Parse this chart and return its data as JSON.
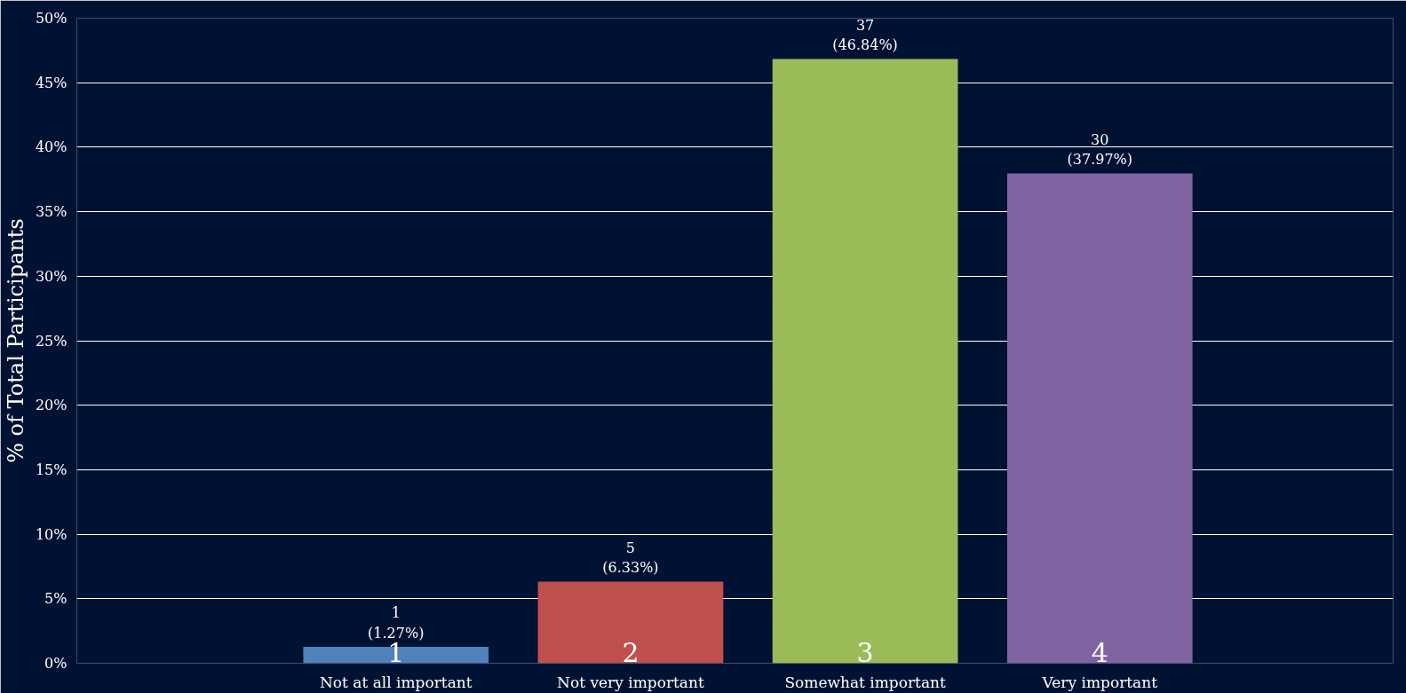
{
  "chart_data": {
    "type": "bar",
    "ylabel": "% of Total Participants",
    "categories": [
      "Not at all important",
      "Not very important",
      "Somewhat important",
      "Very important"
    ],
    "values": [
      1.27,
      6.33,
      46.84,
      37.97
    ],
    "colors": [
      "#4f81bd",
      "#c0504d",
      "#9bbb59",
      "#8064a2"
    ],
    "value_labels": [
      "1\n(1.27%)",
      "5\n(6.33%)",
      "37\n(46.84%)",
      "30\n(37.97%)"
    ],
    "annotations": [
      "1",
      "2",
      "3",
      "4"
    ],
    "ylim": [
      0,
      50
    ],
    "yticks": [
      {
        "value": 0,
        "label": "0%"
      },
      {
        "value": 5,
        "label": "5%"
      },
      {
        "value": 10,
        "label": "10%"
      },
      {
        "value": 15,
        "label": "15%"
      },
      {
        "value": 20,
        "label": "20%"
      },
      {
        "value": 25,
        "label": "25%"
      },
      {
        "value": 30,
        "label": "30%"
      },
      {
        "value": 35,
        "label": "35%"
      },
      {
        "value": 40,
        "label": "40%"
      },
      {
        "value": 45,
        "label": "45%"
      },
      {
        "value": 50,
        "label": "50%"
      }
    ],
    "grid": "y"
  }
}
